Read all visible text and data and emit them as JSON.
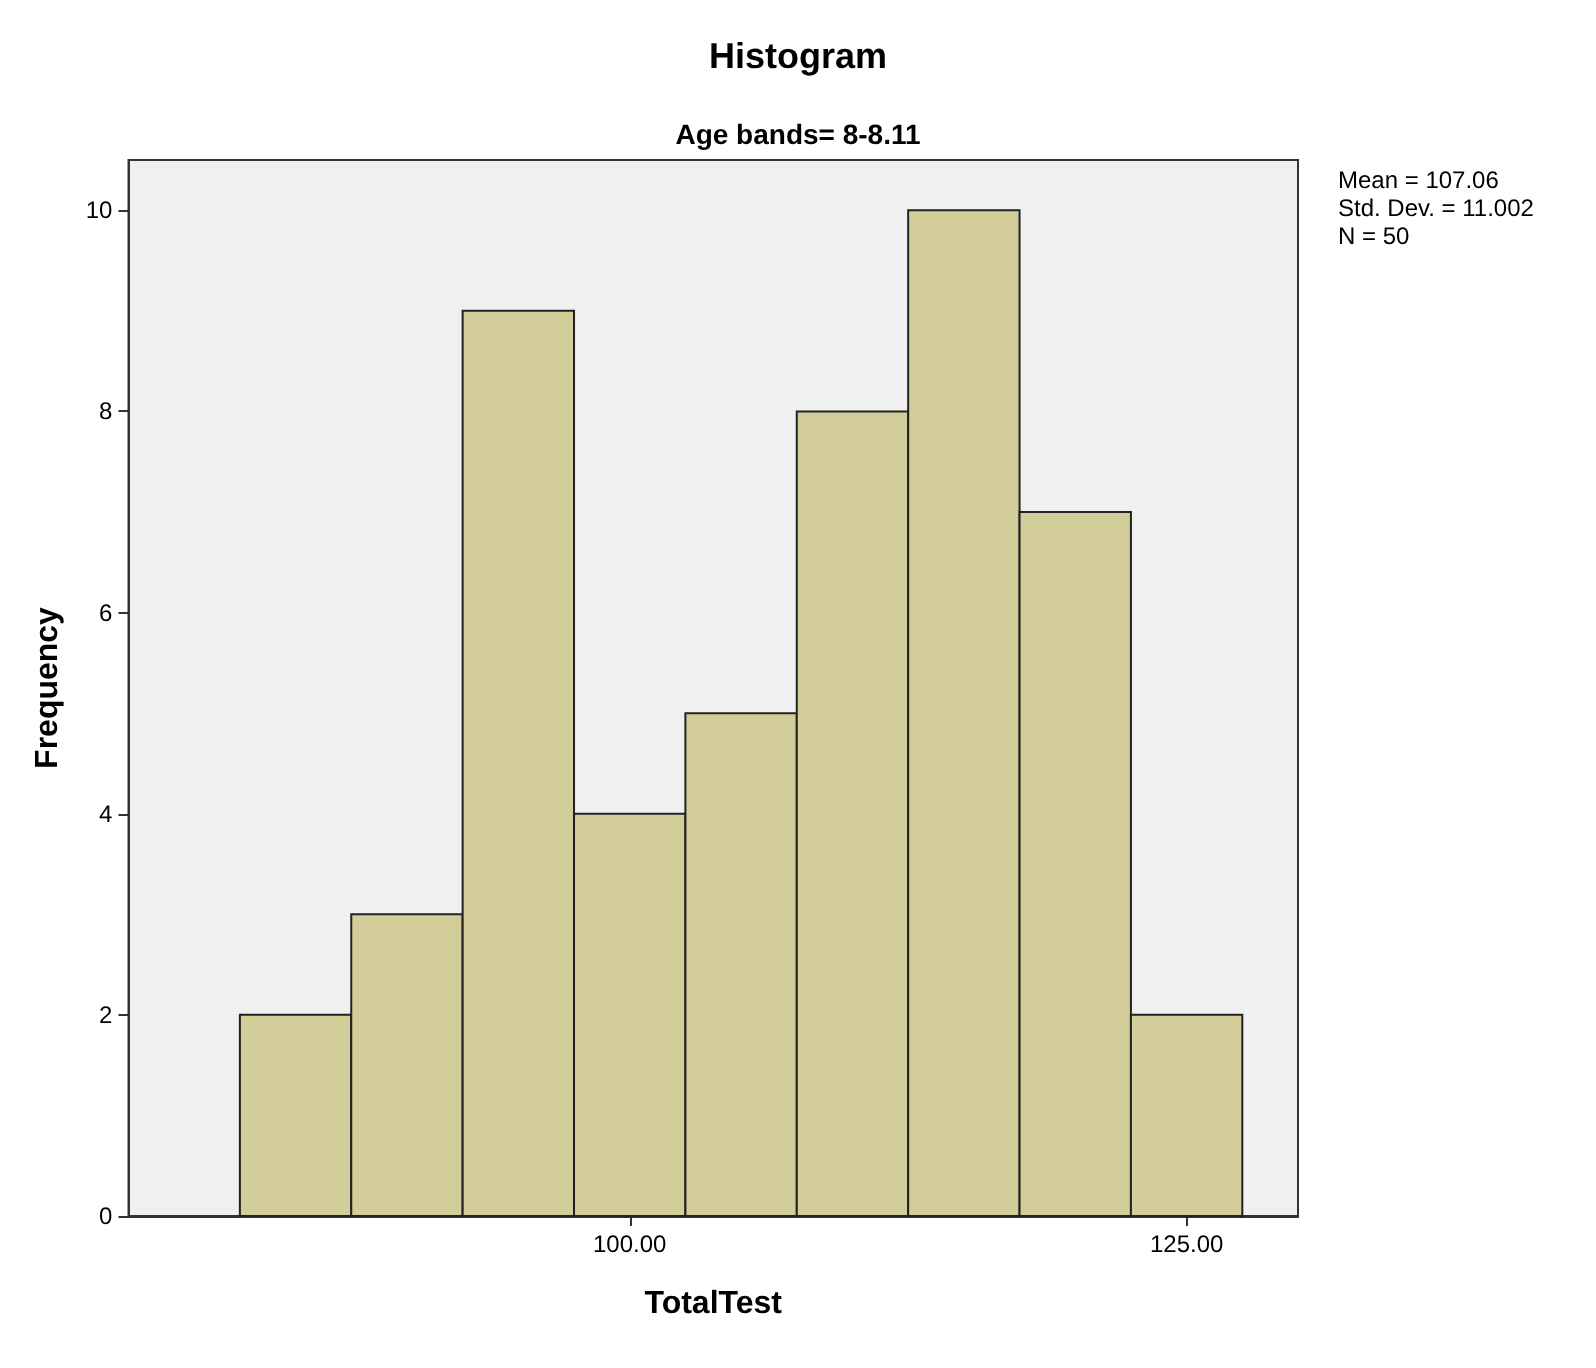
{
  "chart_data": {
    "type": "histogram",
    "title": "Histogram",
    "subtitle": "Age bands= 8-8.11",
    "xlabel": "TotalTest",
    "ylabel": "Frequency",
    "bins": [
      82.5,
      87.5,
      92.5,
      97.5,
      102.5,
      107.5,
      112.5,
      117.5,
      122.5,
      127.5
    ],
    "values": [
      2,
      3,
      9,
      4,
      5,
      8,
      10,
      7,
      2
    ],
    "color": "#d3ce99",
    "xlim": [
      77.5,
      130
    ],
    "xticks": [
      {
        "value": 100,
        "label": "100.00"
      },
      {
        "value": 125,
        "label": "125.00"
      }
    ],
    "ylim": [
      0,
      10.5
    ],
    "yticks": [
      0,
      2,
      4,
      6,
      8,
      10
    ],
    "annotations": [
      "Mean = 107.06",
      "Std. Dev. = 11.002",
      "N = 50"
    ],
    "grid": false
  }
}
